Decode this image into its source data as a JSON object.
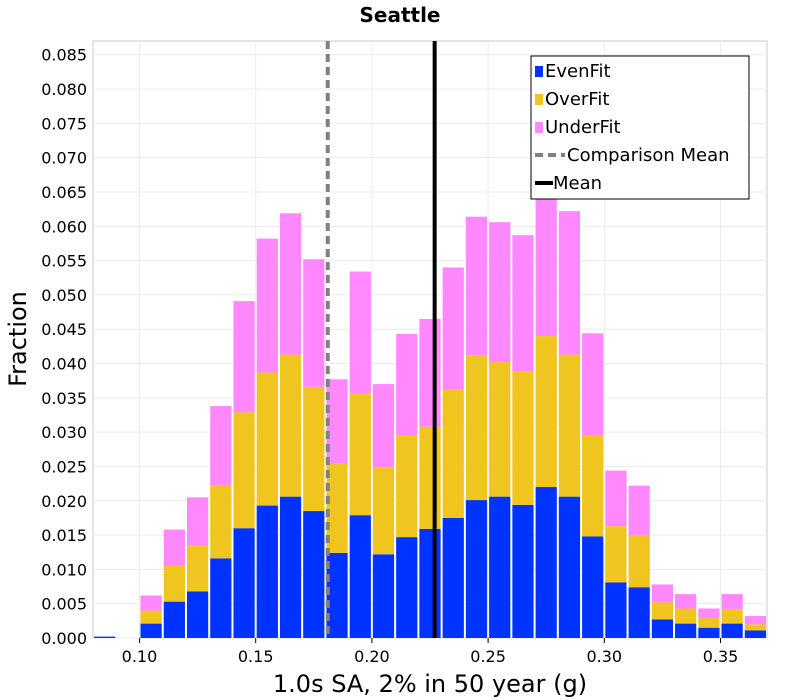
{
  "chart_data": {
    "type": "bar",
    "stacked": true,
    "title": "Seattle",
    "xlabel": "1.0s SA, 2% in 50 year (g)",
    "ylabel": "Fraction",
    "xlim": [
      0.08,
      0.37
    ],
    "ylim": [
      0.0,
      0.087
    ],
    "grid": true,
    "legend_position": "top-right",
    "x_ticks": [
      "0.10",
      "0.15",
      "0.20",
      "0.25",
      "0.30",
      "0.35"
    ],
    "y_ticks": [
      "0.000",
      "0.005",
      "0.010",
      "0.015",
      "0.020",
      "0.025",
      "0.030",
      "0.035",
      "0.040",
      "0.045",
      "0.050",
      "0.055",
      "0.060",
      "0.065",
      "0.070",
      "0.075",
      "0.080",
      "0.085"
    ],
    "bin_width": 0.01,
    "bin_centers": [
      0.085,
      0.095,
      0.105,
      0.115,
      0.125,
      0.135,
      0.145,
      0.155,
      0.165,
      0.175,
      0.185,
      0.195,
      0.205,
      0.215,
      0.225,
      0.235,
      0.245,
      0.255,
      0.265,
      0.275,
      0.285,
      0.295,
      0.305,
      0.315,
      0.325,
      0.335,
      0.345,
      0.355,
      0.365
    ],
    "series": [
      {
        "name": "EvenFit",
        "color": "#0033ff",
        "values": [
          0.0002,
          0.0,
          0.0021,
          0.0053,
          0.0068,
          0.0116,
          0.016,
          0.0193,
          0.0206,
          0.0185,
          0.0124,
          0.0179,
          0.0122,
          0.0147,
          0.0159,
          0.0175,
          0.0201,
          0.0206,
          0.0194,
          0.022,
          0.0206,
          0.0148,
          0.0081,
          0.0074,
          0.0027,
          0.0021,
          0.0015,
          0.0021,
          0.0011
        ]
      },
      {
        "name": "OverFit",
        "color": "#f0c520",
        "values": [
          0.0,
          0.0,
          0.0019,
          0.0052,
          0.0067,
          0.0107,
          0.0169,
          0.0194,
          0.0207,
          0.0181,
          0.013,
          0.0177,
          0.0127,
          0.0148,
          0.0149,
          0.0187,
          0.0211,
          0.0196,
          0.0195,
          0.022,
          0.0207,
          0.0147,
          0.0082,
          0.0075,
          0.0025,
          0.0022,
          0.0014,
          0.0021,
          0.0009
        ]
      },
      {
        "name": "UnderFit",
        "color": "#ff88ff",
        "values": [
          0.0,
          0.0,
          0.0022,
          0.0053,
          0.007,
          0.0115,
          0.0162,
          0.0195,
          0.0206,
          0.0186,
          0.0123,
          0.0178,
          0.0121,
          0.0148,
          0.0157,
          0.0178,
          0.0202,
          0.0204,
          0.0198,
          0.022,
          0.0209,
          0.0149,
          0.0081,
          0.0073,
          0.0026,
          0.0021,
          0.0014,
          0.0022,
          0.0012
        ]
      }
    ],
    "vlines": [
      {
        "name": "Comparison Mean",
        "x": 0.181,
        "color": "#808080",
        "style": "dashed"
      },
      {
        "name": "Mean",
        "x": 0.227,
        "color": "#000000",
        "style": "solid"
      }
    ]
  }
}
